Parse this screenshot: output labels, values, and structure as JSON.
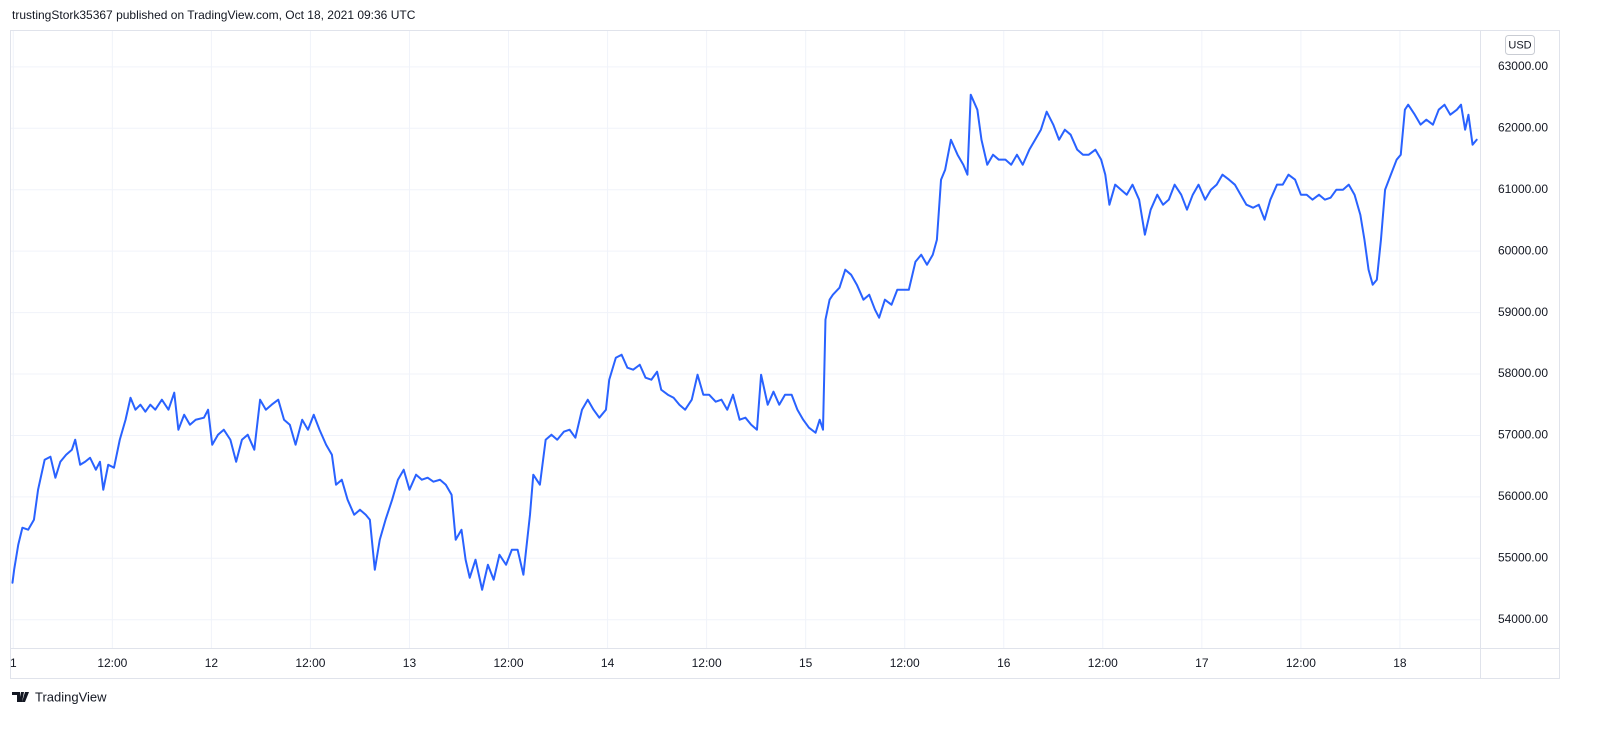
{
  "chart_data": {
    "type": "line",
    "title": "trustingStork35367 published on TradingView.com, Oct 18, 2021 09:36 UTC",
    "currency_label": "USD",
    "footer": "TradingView",
    "grid": true,
    "xlim": [
      -0.4,
      177.7
    ],
    "ylim": [
      53540,
      63600
    ],
    "xticks": [
      {
        "value": 0,
        "label": "1"
      },
      {
        "value": 12,
        "label": "12:00"
      },
      {
        "value": 24,
        "label": "12"
      },
      {
        "value": 36,
        "label": "12:00"
      },
      {
        "value": 48,
        "label": "13"
      },
      {
        "value": 60,
        "label": "12:00"
      },
      {
        "value": 72,
        "label": "14"
      },
      {
        "value": 84,
        "label": "12:00"
      },
      {
        "value": 96,
        "label": "15"
      },
      {
        "value": 108,
        "label": "12:00"
      },
      {
        "value": 120,
        "label": "16"
      },
      {
        "value": 132,
        "label": "12:00"
      },
      {
        "value": 144,
        "label": "17"
      },
      {
        "value": 156,
        "label": "12:00"
      },
      {
        "value": 168,
        "label": "18"
      }
    ],
    "yticks": [
      {
        "value": 54000,
        "label": "54000.00"
      },
      {
        "value": 55000,
        "label": "55000.00"
      },
      {
        "value": 56000,
        "label": "56000.00"
      },
      {
        "value": 57000,
        "label": "57000.00"
      },
      {
        "value": 58000,
        "label": "58000.00"
      },
      {
        "value": 59000,
        "label": "59000.00"
      },
      {
        "value": 60000,
        "label": "60000.00"
      },
      {
        "value": 61000,
        "label": "61000.00"
      },
      {
        "value": 62000,
        "label": "62000.00"
      },
      {
        "value": 63000,
        "label": "63000.00"
      }
    ],
    "x": [
      -0.1,
      0.1,
      0.6,
      1.1,
      1.8,
      2.5,
      3.0,
      3.8,
      4.5,
      5.1,
      5.7,
      6.4,
      7.1,
      7.5,
      8.1,
      8.7,
      9.3,
      10.0,
      10.5,
      10.9,
      11.5,
      12.2,
      12.9,
      13.6,
      14.2,
      14.8,
      15.4,
      16.0,
      16.6,
      17.2,
      18.0,
      18.8,
      19.5,
      20.0,
      20.7,
      21.4,
      22.1,
      23.1,
      23.6,
      24.1,
      24.8,
      25.5,
      26.3,
      27.0,
      27.7,
      28.4,
      29.2,
      29.9,
      30.6,
      31.3,
      32.1,
      32.8,
      33.5,
      34.2,
      35.0,
      35.7,
      36.4,
      37.1,
      37.9,
      38.6,
      39.1,
      39.8,
      40.5,
      41.3,
      42.0,
      42.7,
      43.2,
      43.8,
      44.4,
      45.1,
      45.9,
      46.6,
      47.3,
      48.0,
      48.8,
      49.5,
      50.2,
      50.9,
      51.7,
      52.4,
      53.1,
      53.6,
      54.3,
      54.8,
      55.3,
      56.0,
      56.8,
      57.5,
      58.2,
      58.9,
      59.7,
      60.4,
      61.1,
      61.8,
      62.6,
      63.0,
      63.8,
      64.5,
      65.2,
      65.9,
      66.7,
      67.4,
      68.1,
      68.9,
      69.6,
      70.3,
      71.0,
      71.8,
      72.2,
      73.0,
      73.7,
      74.4,
      75.1,
      75.9,
      76.6,
      77.3,
      78.0,
      78.5,
      79.3,
      80.0,
      80.7,
      81.4,
      82.2,
      82.9,
      83.6,
      84.3,
      85.1,
      85.8,
      86.5,
      87.2,
      88.0,
      88.7,
      89.4,
      90.1,
      90.6,
      91.4,
      92.1,
      92.8,
      93.5,
      94.3,
      95.0,
      95.7,
      96.4,
      97.2,
      97.7,
      98.1,
      98.4,
      98.9,
      99.3,
      100.1,
      100.8,
      101.5,
      102.2,
      103.0,
      103.7,
      104.4,
      104.9,
      105.6,
      106.4,
      107.1,
      107.8,
      108.5,
      109.3,
      110.0,
      110.7,
      111.4,
      111.9,
      112.4,
      112.9,
      113.6,
      114.4,
      115.1,
      115.6,
      116.0,
      116.8,
      117.3,
      118.0,
      118.7,
      119.4,
      120.2,
      120.9,
      121.6,
      122.3,
      123.1,
      123.8,
      124.5,
      125.2,
      126.0,
      126.7,
      127.4,
      128.1,
      128.9,
      129.6,
      130.3,
      131.1,
      131.8,
      132.3,
      132.8,
      133.5,
      134.2,
      134.9,
      135.6,
      136.4,
      137.1,
      137.8,
      138.6,
      139.3,
      140.0,
      140.7,
      141.5,
      142.2,
      142.9,
      143.6,
      144.4,
      145.1,
      145.8,
      146.5,
      147.3,
      148.0,
      148.7,
      149.4,
      150.2,
      150.9,
      151.6,
      152.3,
      153.1,
      153.8,
      154.5,
      155.3,
      156.0,
      156.7,
      157.4,
      158.2,
      158.9,
      159.6,
      160.3,
      161.1,
      161.8,
      162.5,
      163.2,
      163.7,
      164.2,
      164.7,
      165.2,
      165.7,
      166.2,
      166.9,
      167.6,
      168.1,
      168.6,
      169.0,
      169.8,
      170.5,
      171.2,
      172.0,
      172.7,
      173.4,
      174.1,
      174.9,
      175.4,
      175.9,
      176.3,
      176.8,
      177.3
    ],
    "series": [
      {
        "color": "#2962ff",
        "values": [
          54602,
          54814,
          55221,
          55498,
          55465,
          55628,
          56116,
          56605,
          56654,
          56312,
          56572,
          56686,
          56768,
          56930,
          56523,
          56572,
          56637,
          56442,
          56572,
          56116,
          56523,
          56475,
          56930,
          57256,
          57614,
          57419,
          57500,
          57386,
          57500,
          57419,
          57582,
          57419,
          57696,
          57093,
          57337,
          57175,
          57256,
          57289,
          57419,
          56849,
          57012,
          57093,
          56930,
          56572,
          56930,
          57012,
          56768,
          57582,
          57419,
          57500,
          57582,
          57256,
          57175,
          56849,
          57256,
          57093,
          57337,
          57093,
          56849,
          56686,
          56198,
          56279,
          55954,
          55709,
          55791,
          55709,
          55628,
          54814,
          55302,
          55628,
          55954,
          56279,
          56442,
          56116,
          56361,
          56279,
          56312,
          56247,
          56279,
          56198,
          56035,
          55302,
          55465,
          54977,
          54684,
          54977,
          54488,
          54895,
          54651,
          55058,
          54895,
          55140,
          55140,
          54733,
          55709,
          56361,
          56198,
          56930,
          57012,
          56930,
          57061,
          57093,
          56963,
          57419,
          57582,
          57419,
          57289,
          57419,
          57907,
          58265,
          58314,
          58103,
          58070,
          58151,
          57940,
          57907,
          58037,
          57744,
          57663,
          57614,
          57500,
          57419,
          57582,
          57989,
          57663,
          57663,
          57549,
          57582,
          57419,
          57663,
          57256,
          57289,
          57175,
          57093,
          57989,
          57500,
          57712,
          57500,
          57663,
          57663,
          57419,
          57256,
          57126,
          57044,
          57256,
          57093,
          58884,
          59210,
          59291,
          59405,
          59698,
          59617,
          59454,
          59210,
          59291,
          59047,
          58917,
          59210,
          59128,
          59372,
          59372,
          59372,
          59828,
          59942,
          59779,
          59942,
          60186,
          61163,
          61326,
          61814,
          61570,
          61407,
          61245,
          62547,
          62303,
          61814,
          61407,
          61570,
          61489,
          61489,
          61407,
          61570,
          61407,
          61652,
          61814,
          61977,
          62270,
          62059,
          61814,
          61977,
          61896,
          61652,
          61570,
          61570,
          61652,
          61489,
          61245,
          60756,
          61082,
          61000,
          60919,
          61082,
          60838,
          60268,
          60675,
          60919,
          60756,
          60838,
          61082,
          60919,
          60675,
          60919,
          61082,
          60838,
          61000,
          61082,
          61245,
          61163,
          61082,
          60919,
          60756,
          60707,
          60756,
          60512,
          60838,
          61082,
          61082,
          61245,
          61163,
          60919,
          60919,
          60838,
          60919,
          60838,
          60870,
          61000,
          61000,
          61082,
          60919,
          60593,
          60186,
          59698,
          59454,
          59535,
          60186,
          61000,
          61245,
          61489,
          61570,
          62303,
          62384,
          62221,
          62059,
          62140,
          62059,
          62303,
          62384,
          62221,
          62303,
          62384,
          61977,
          62221,
          61733,
          61814
        ]
      }
    ]
  }
}
